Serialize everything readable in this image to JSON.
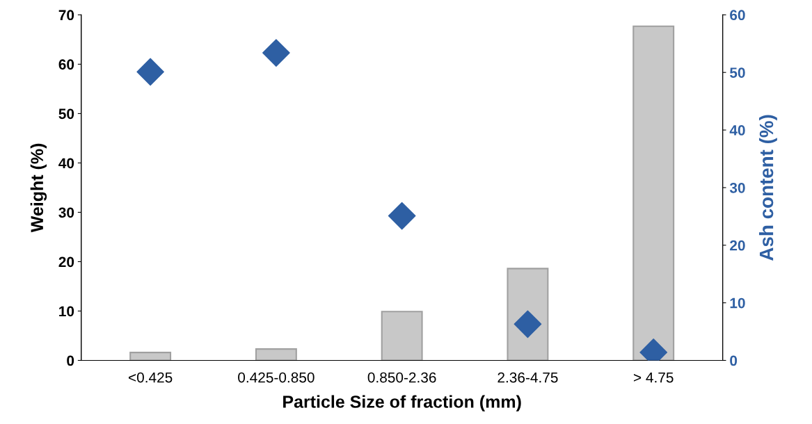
{
  "chart_data": {
    "type": "bar",
    "xlabel": "Particle Size of fraction (mm)",
    "ylabel": "Weight (%)",
    "y2label": "Ash content (%)",
    "categories": [
      "<0.425",
      "0.425-0.850",
      "0.850-2.36",
      "2.36-4.75",
      "> 4.75"
    ],
    "series": [
      {
        "color": "#c8c8c8",
        "values": [
          1.6,
          2.3,
          9.9,
          18.6,
          67.7
        ]
      },
      {
        "type": "scatter",
        "axis": "y2",
        "color": "#2e5fa3",
        "marker": "diamond",
        "values": [
          50.1,
          53.4,
          25.1,
          6.3,
          1.4
        ]
      }
    ],
    "ylim": [
      0,
      70
    ],
    "yticks": [
      0,
      10,
      20,
      30,
      40,
      50,
      60,
      70
    ],
    "y2lim": [
      0,
      60
    ],
    "y2ticks": [
      0,
      10,
      20,
      30,
      40,
      50,
      60
    ],
    "grid": false,
    "legend": false
  }
}
